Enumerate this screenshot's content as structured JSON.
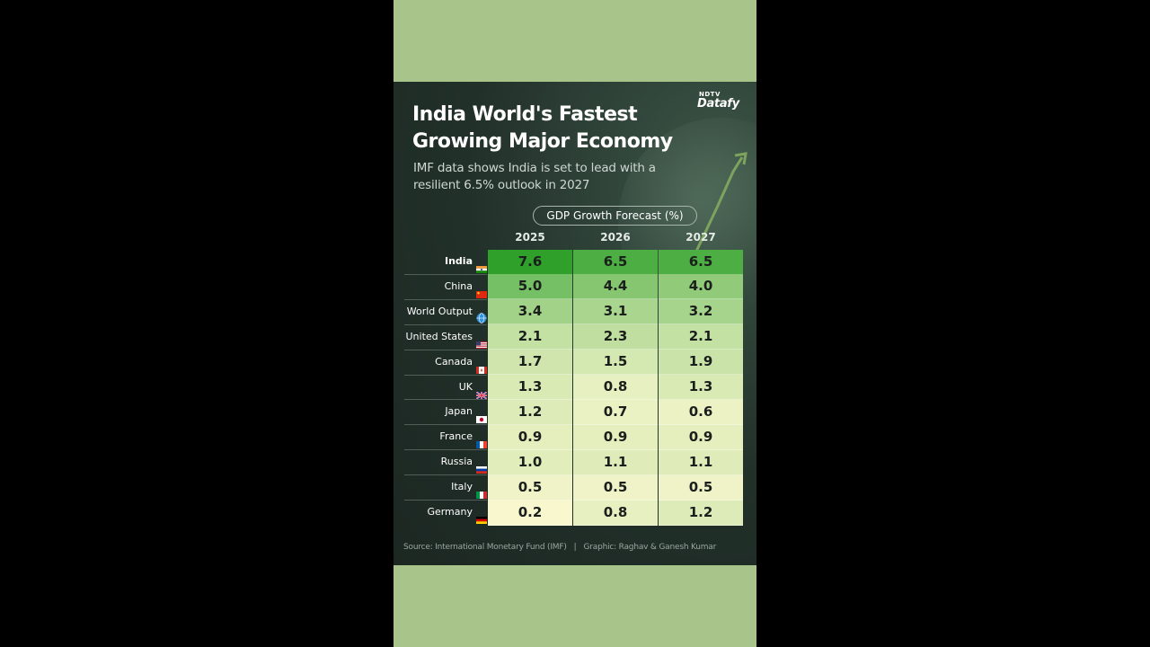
{
  "brand": {
    "top": "NDTV",
    "bottom": "Datafy"
  },
  "title_line1": "India World's Fastest",
  "title_line2": "Growing Major Economy",
  "subtitle_line1": "IMF data shows India is set to lead with a",
  "subtitle_line2": "resilient 6.5% outlook in 2027",
  "footer": {
    "source": "Source: International Monetary Fund (IMF)",
    "divider": "|",
    "credit": "Graphic: Raghav & Ganesh Kumar"
  },
  "colors": {
    "background": "#a9c48a",
    "panel": "#22302a",
    "high": "#2fa12b",
    "low": "#fdf9d2"
  },
  "chart_data": {
    "type": "table",
    "title": "GDP Growth Forecast (%)",
    "categories": [
      "2025",
      "2026",
      "2027"
    ],
    "rows": [
      {
        "name": "India",
        "values": [
          "7.6",
          "6.5",
          "6.5"
        ],
        "flag": "india-flag-icon"
      },
      {
        "name": "China",
        "values": [
          "5.0",
          "4.4",
          "4.0"
        ],
        "flag": "china-flag-icon"
      },
      {
        "name": "World Output",
        "values": [
          "3.4",
          "3.1",
          "3.2"
        ],
        "flag": "globe-icon"
      },
      {
        "name": "United States",
        "values": [
          "2.1",
          "2.3",
          "2.1"
        ],
        "flag": "us-flag-icon"
      },
      {
        "name": "Canada",
        "values": [
          "1.7",
          "1.5",
          "1.9"
        ],
        "flag": "canada-flag-icon"
      },
      {
        "name": "UK",
        "values": [
          "1.3",
          "0.8",
          "1.3"
        ],
        "flag": "uk-flag-icon"
      },
      {
        "name": "Japan",
        "values": [
          "1.2",
          "0.7",
          "0.6"
        ],
        "flag": "japan-flag-icon"
      },
      {
        "name": "France",
        "values": [
          "0.9",
          "0.9",
          "0.9"
        ],
        "flag": "france-flag-icon"
      },
      {
        "name": "Russia",
        "values": [
          "1.0",
          "1.1",
          "1.1"
        ],
        "flag": "russia-flag-icon"
      },
      {
        "name": "Italy",
        "values": [
          "0.5",
          "0.5",
          "0.5"
        ],
        "flag": "italy-flag-icon"
      },
      {
        "name": "Germany",
        "values": [
          "0.2",
          "0.8",
          "1.2"
        ],
        "flag": "germany-flag-icon"
      }
    ]
  }
}
